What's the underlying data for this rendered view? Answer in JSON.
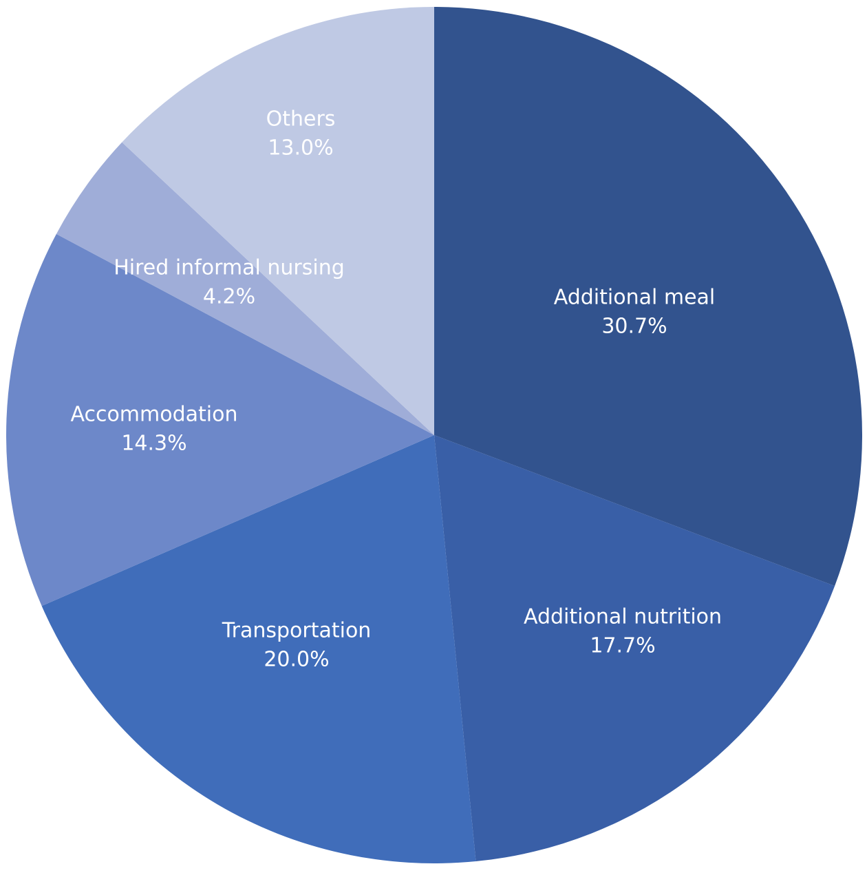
{
  "chart_data": {
    "type": "pie",
    "title": "",
    "start_angle_deg": 0,
    "direction": "clockwise",
    "unit": "%",
    "slices": [
      {
        "label": "Additional meal",
        "value": 30.7,
        "value_text": "30.7%",
        "color": "#32538E"
      },
      {
        "label": "Additional nutrition",
        "value": 17.7,
        "value_text": "17.7%",
        "color": "#395FA7"
      },
      {
        "label": "Transportation",
        "value": 20.0,
        "value_text": "20.0%",
        "color": "#406DBA"
      },
      {
        "label": "Accommodation",
        "value": 14.3,
        "value_text": "14.3%",
        "color": "#6D88C9"
      },
      {
        "label": "Hired informal nursing",
        "value": 4.2,
        "value_text": "4.2%",
        "color": "#9FADD8"
      },
      {
        "label": "Others",
        "value": 13.0,
        "value_text": "13.0%",
        "color": "#BFC9E4"
      }
    ]
  }
}
